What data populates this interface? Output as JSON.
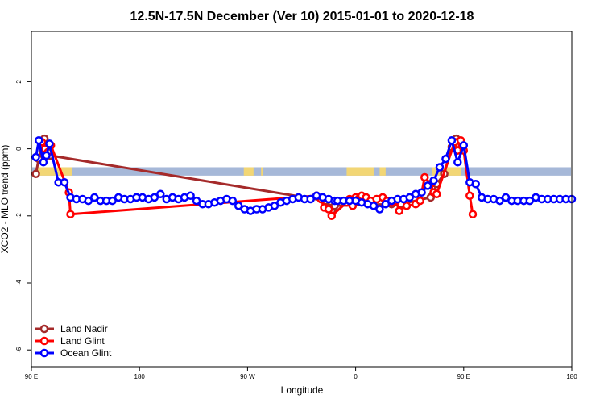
{
  "chart_data": {
    "type": "line",
    "title": "12.5N-17.5N December (Ver 10)   2015-01-01 to 2020-12-18",
    "xlabel": "Longitude",
    "ylabel": "XCO2 - MLO trend (ppm)",
    "xlim": [
      90,
      450
    ],
    "ylim": [
      -6.5,
      3.5
    ],
    "x_ticks": [
      90,
      162,
      234,
      306,
      378,
      450
    ],
    "x_tick_labels": [
      "90 E",
      "180",
      "90 W",
      "0",
      "90 E",
      "180"
    ],
    "y_ticks": [
      2,
      0,
      -2,
      -4,
      -6
    ],
    "y_tick_labels": [
      "2",
      "0",
      "-2",
      "-4",
      "-6"
    ],
    "grid": false,
    "legend_position": "bottom-left",
    "land_mask": {
      "y_range": [
        -0.8,
        -0.55
      ],
      "ocean_color": "#A6B8D8",
      "land_color": "#F2D675",
      "land_spans": [
        [
          94,
          117
        ],
        [
          231.5,
          238
        ],
        [
          243,
          244.5
        ],
        [
          300,
          318
        ],
        [
          322,
          326
        ],
        [
          357,
          373
        ],
        [
          372,
          376
        ]
      ]
    },
    "series": [
      {
        "name": "Land Nadir",
        "color": "#A52A2A",
        "x": [
          93,
          94.9,
          96.8,
          98.7,
          100.6,
          102.5,
          286,
          288,
          290,
          292,
          330,
          334,
          336,
          356,
          358,
          360,
          365,
          370,
          373,
          375
        ],
        "y": [
          -0.75,
          -0.3,
          0.1,
          0.3,
          0.0,
          -0.2,
          -1.55,
          -1.75,
          -1.85,
          -1.7,
          -1.65,
          -1.6,
          -1.65,
          -1.45,
          -1.3,
          -1.05,
          -0.75,
          0.05,
          0.3,
          0.1
        ]
      },
      {
        "name": "Land Glint",
        "color": "#FF0000",
        "x": [
          97,
          99,
          101,
          103,
          115,
          116,
          280,
          283,
          285,
          288,
          290,
          300,
          302,
          304,
          306,
          308,
          310,
          313,
          316,
          320,
          324,
          327,
          330,
          333,
          335,
          340,
          346,
          349,
          352,
          356,
          358,
          360,
          372,
          374,
          376,
          378,
          382,
          384
        ],
        "y": [
          0.2,
          0.0,
          -0.1,
          0.1,
          -1.3,
          -1.95,
          -1.4,
          -1.5,
          -1.75,
          -1.8,
          -2.0,
          -1.6,
          -1.5,
          -1.7,
          -1.45,
          -1.5,
          -1.4,
          -1.45,
          -1.55,
          -1.5,
          -1.45,
          -1.55,
          -1.6,
          -1.55,
          -1.85,
          -1.7,
          -1.65,
          -1.55,
          -0.85,
          -1.05,
          -1.3,
          -1.35,
          0.2,
          -0.05,
          0.25,
          -0.05,
          -1.4,
          -1.95
        ]
      },
      {
        "name": "Ocean Glint",
        "color": "#0000FF",
        "x": [
          93,
          95,
          98,
          100,
          102,
          108,
          112,
          116,
          120,
          124,
          128,
          132,
          136,
          140,
          144,
          148,
          152,
          156,
          160,
          164,
          168,
          172,
          176,
          180,
          184,
          188,
          192,
          196,
          200,
          204,
          208,
          212,
          216,
          220,
          224,
          228,
          232,
          236,
          240,
          244,
          248,
          252,
          256,
          260,
          264,
          268,
          272,
          276,
          280,
          284,
          288,
          292,
          294,
          298,
          302,
          306,
          310,
          314,
          318,
          322,
          326,
          330,
          334,
          338,
          342,
          346,
          350,
          354,
          358,
          362,
          366,
          370,
          374,
          378,
          382,
          386,
          390,
          394,
          398,
          402,
          406,
          410,
          414,
          418,
          422,
          426,
          430,
          434,
          438,
          442,
          446,
          450
        ],
        "y": [
          -0.25,
          0.25,
          -0.4,
          -0.2,
          0.15,
          -1.0,
          -1.0,
          -1.45,
          -1.5,
          -1.5,
          -1.55,
          -1.45,
          -1.55,
          -1.55,
          -1.55,
          -1.45,
          -1.5,
          -1.5,
          -1.45,
          -1.45,
          -1.5,
          -1.45,
          -1.35,
          -1.5,
          -1.45,
          -1.5,
          -1.45,
          -1.4,
          -1.55,
          -1.65,
          -1.65,
          -1.6,
          -1.55,
          -1.5,
          -1.55,
          -1.7,
          -1.8,
          -1.85,
          -1.8,
          -1.8,
          -1.75,
          -1.7,
          -1.6,
          -1.55,
          -1.5,
          -1.45,
          -1.5,
          -1.5,
          -1.4,
          -1.45,
          -1.5,
          -1.55,
          -1.55,
          -1.55,
          -1.55,
          -1.55,
          -1.6,
          -1.65,
          -1.7,
          -1.8,
          -1.65,
          -1.55,
          -1.5,
          -1.5,
          -1.45,
          -1.35,
          -1.3,
          -1.1,
          -0.95,
          -0.55,
          -0.3,
          0.25,
          -0.4,
          0.1,
          -1.0,
          -1.05,
          -1.45,
          -1.5,
          -1.5,
          -1.55,
          -1.45,
          -1.55,
          -1.55,
          -1.55,
          -1.55,
          -1.45,
          -1.5,
          -1.5,
          -1.5,
          -1.5,
          -1.5,
          -1.5
        ]
      }
    ]
  }
}
